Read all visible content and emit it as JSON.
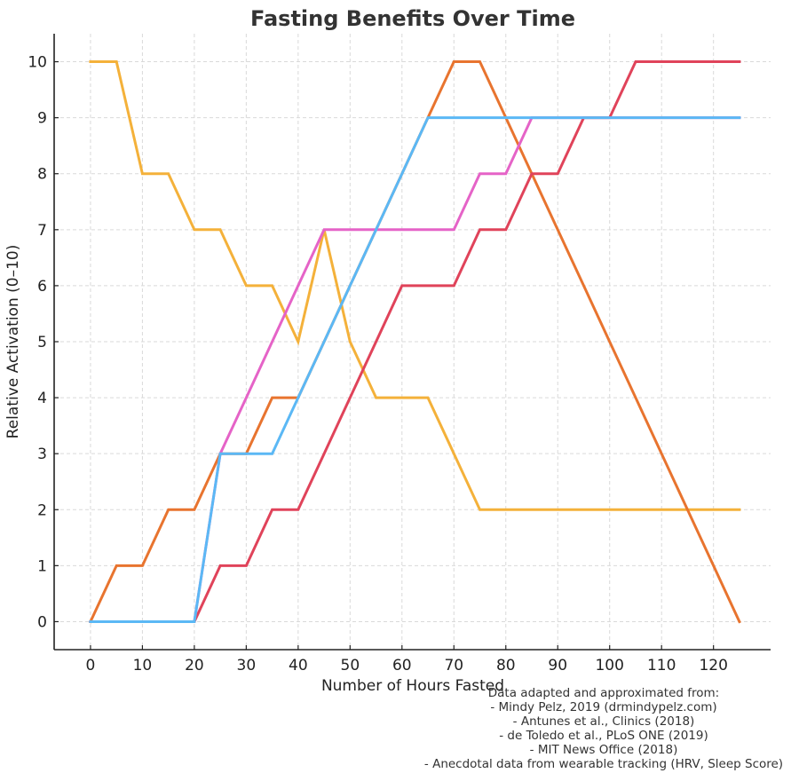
{
  "chart_data": {
    "type": "line",
    "title": "Fasting Benefits Over Time",
    "xlabel": "Number of Hours Fasted",
    "ylabel": "Relative Activation (0–10)",
    "xlim": [
      -7,
      131
    ],
    "ylim": [
      -0.5,
      10.5
    ],
    "xticks": [
      0,
      10,
      20,
      30,
      40,
      50,
      60,
      70,
      80,
      90,
      100,
      110,
      120
    ],
    "yticks": [
      0,
      1,
      2,
      3,
      4,
      5,
      6,
      7,
      8,
      9,
      10
    ],
    "grid": true,
    "legend": null,
    "x": [
      0,
      5,
      10,
      15,
      20,
      25,
      30,
      35,
      40,
      45,
      50,
      55,
      60,
      65,
      70,
      75,
      80,
      85,
      90,
      95,
      100,
      105,
      110,
      115,
      120,
      125
    ],
    "series": [
      {
        "name": "series-yellow",
        "color": "#F4B13A",
        "values": [
          10,
          10,
          8,
          8,
          7,
          7,
          6,
          6,
          5,
          7,
          5,
          4,
          4,
          4,
          3,
          2,
          2,
          2,
          2,
          2,
          2,
          2,
          2,
          2,
          2,
          2
        ]
      },
      {
        "name": "series-orange",
        "color": "#E8742F",
        "values": [
          0,
          1,
          1,
          2,
          2,
          3,
          3,
          4,
          4,
          5,
          6,
          7,
          8,
          9,
          10,
          10,
          9,
          8,
          7,
          6,
          5,
          4,
          3,
          2,
          1,
          0
        ]
      },
      {
        "name": "series-pink",
        "color": "#E563C7",
        "values": [
          0,
          0,
          0,
          0,
          0,
          3,
          4,
          5,
          6,
          7,
          7,
          7,
          7,
          7,
          7,
          8,
          8,
          9,
          9,
          9,
          9,
          9,
          9,
          9,
          9,
          9
        ]
      },
      {
        "name": "series-red",
        "color": "#E0435A",
        "values": [
          0,
          0,
          0,
          0,
          0,
          1,
          1,
          2,
          2,
          3,
          4,
          5,
          6,
          6,
          6,
          7,
          7,
          8,
          8,
          9,
          9,
          10,
          10,
          10,
          10,
          10
        ]
      },
      {
        "name": "series-blue",
        "color": "#5BB8F5",
        "values": [
          0,
          0,
          0,
          0,
          0,
          3,
          3,
          3,
          4,
          5,
          6,
          7,
          8,
          9,
          9,
          9,
          9,
          9,
          9,
          9,
          9,
          9,
          9,
          9,
          9,
          9
        ]
      }
    ],
    "annotation": [
      "Data adapted and approximated from:",
      "- Mindy Pelz, 2019 (drmindypelz.com)",
      "- Antunes et al., Clinics (2018)",
      "- de Toledo et al., PLoS ONE (2019)",
      "- MIT News Office (2018)",
      "- Anecdotal data from wearable tracking (HRV, Sleep Score)"
    ]
  }
}
